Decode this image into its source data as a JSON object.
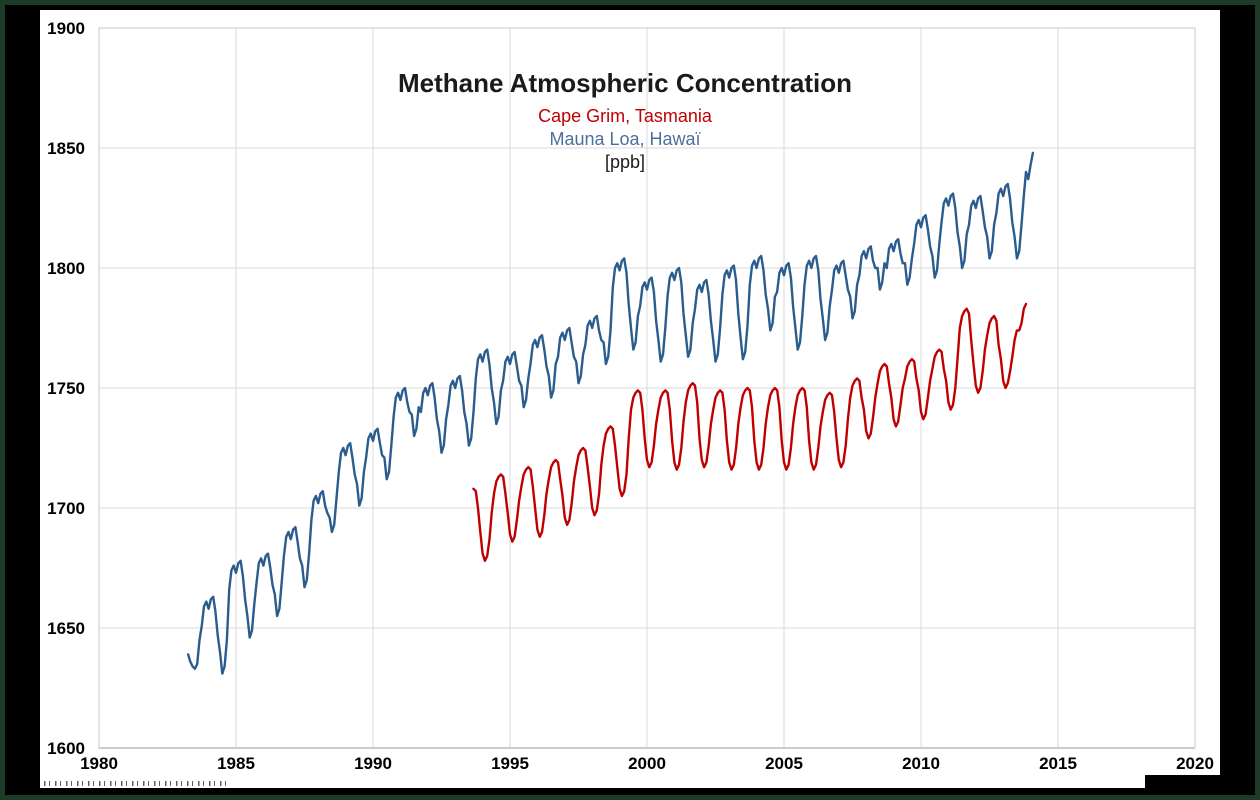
{
  "title": "Methane Atmospheric Concentration",
  "legend": {
    "cape_grim": "Cape Grim, Tasmania",
    "mauna_loa": "Mauna Loa, Hawaï",
    "unit": "[ppb]"
  },
  "colors": {
    "cape_grim_line": "#C00000",
    "cape_grim_label": "#C00000",
    "mauna_loa_line": "#2B5C8E",
    "mauna_loa_label": "#4D6F9D",
    "grid": "#D9D9D9",
    "plot_border": "#C9C9C9",
    "axis_line": "#9E9E9E",
    "frame_border": "#1C3B26",
    "outer_background": "#000000",
    "chart_background": "#FFFFFF"
  },
  "chart_data": {
    "type": "line",
    "title": "Methane Atmospheric Concentration",
    "subtitle1": "Cape Grim, Tasmania",
    "subtitle2": "Mauna Loa, Hawaï",
    "unit": "ppb",
    "grid": true,
    "legend_position": "top-center-as-subtitles",
    "x_axis": {
      "min": 1980,
      "max": 2020,
      "tick_step": 5,
      "ticks": [
        1980,
        1985,
        1990,
        1995,
        2000,
        2005,
        2010,
        2015,
        2020
      ]
    },
    "y_axis": {
      "min": 1600,
      "max": 1900,
      "tick_step": 50,
      "ticks": [
        1600,
        1650,
        1700,
        1750,
        1800,
        1850,
        1900
      ]
    },
    "series": [
      {
        "name": "Mauna Loa, Hawaï",
        "color": "#2B5C8E",
        "start_year": 1983.25,
        "points_per_year": 12,
        "values": [
          1639,
          1636,
          1634,
          1633,
          1635,
          1645,
          1651,
          1659,
          1661,
          1658,
          1662,
          1663,
          1657,
          1647,
          1640,
          1631,
          1634,
          1645,
          1666,
          1674,
          1676,
          1673,
          1677,
          1678,
          1672,
          1662,
          1655,
          1646,
          1649,
          1660,
          1669,
          1677,
          1679,
          1676,
          1680,
          1681,
          1675,
          1668,
          1664,
          1655,
          1658,
          1669,
          1680,
          1688,
          1690,
          1687,
          1691,
          1692,
          1686,
          1679,
          1676,
          1667,
          1670,
          1681,
          1695,
          1703,
          1705,
          1702,
          1706,
          1707,
          1701,
          1698,
          1696,
          1690,
          1693,
          1704,
          1715,
          1723,
          1725,
          1722,
          1726,
          1727,
          1721,
          1714,
          1710,
          1701,
          1704,
          1715,
          1721,
          1729,
          1731,
          1728,
          1732,
          1733,
          1727,
          1722,
          1721,
          1712,
          1715,
          1726,
          1738,
          1746,
          1748,
          1745,
          1749,
          1750,
          1744,
          1740,
          1739,
          1730,
          1733,
          1742,
          1740,
          1748,
          1750,
          1747,
          1751,
          1752,
          1746,
          1737,
          1732,
          1723,
          1726,
          1737,
          1743,
          1751,
          1753,
          1750,
          1754,
          1755,
          1749,
          1740,
          1735,
          1726,
          1729,
          1740,
          1754,
          1762,
          1764,
          1761,
          1765,
          1766,
          1760,
          1750,
          1744,
          1735,
          1738,
          1749,
          1753,
          1761,
          1763,
          1760,
          1764,
          1765,
          1759,
          1753,
          1751,
          1742,
          1745,
          1754,
          1760,
          1768,
          1770,
          1767,
          1771,
          1772,
          1766,
          1759,
          1755,
          1746,
          1749,
          1760,
          1763,
          1771,
          1773,
          1770,
          1774,
          1775,
          1769,
          1763,
          1761,
          1752,
          1755,
          1764,
          1768,
          1776,
          1778,
          1775,
          1779,
          1780,
          1774,
          1770,
          1769,
          1760,
          1763,
          1774,
          1792,
          1800,
          1802,
          1799,
          1803,
          1804,
          1798,
          1785,
          1775,
          1766,
          1769,
          1780,
          1784,
          1792,
          1794,
          1791,
          1795,
          1796,
          1790,
          1778,
          1770,
          1761,
          1764,
          1775,
          1788,
          1796,
          1798,
          1795,
          1799,
          1800,
          1794,
          1781,
          1772,
          1763,
          1766,
          1777,
          1783,
          1791,
          1793,
          1790,
          1794,
          1795,
          1789,
          1778,
          1770,
          1761,
          1764,
          1775,
          1789,
          1797,
          1799,
          1796,
          1800,
          1801,
          1795,
          1781,
          1771,
          1762,
          1765,
          1776,
          1793,
          1801,
          1803,
          1800,
          1804,
          1805,
          1799,
          1789,
          1783,
          1774,
          1777,
          1788,
          1790,
          1798,
          1800,
          1797,
          1801,
          1802,
          1796,
          1784,
          1775,
          1766,
          1769,
          1780,
          1793,
          1801,
          1803,
          1800,
          1804,
          1805,
          1799,
          1787,
          1779,
          1770,
          1773,
          1784,
          1791,
          1799,
          1801,
          1798,
          1802,
          1803,
          1797,
          1791,
          1788,
          1779,
          1782,
          1793,
          1797,
          1805,
          1807,
          1804,
          1808,
          1809,
          1803,
          1800,
          1800,
          1791,
          1794,
          1802,
          1800,
          1808,
          1810,
          1807,
          1811,
          1812,
          1806,
          1802,
          1802,
          1793,
          1796,
          1804,
          1810,
          1818,
          1820,
          1817,
          1821,
          1822,
          1816,
          1809,
          1805,
          1796,
          1799,
          1810,
          1819,
          1827,
          1829,
          1826,
          1830,
          1831,
          1825,
          1815,
          1809,
          1800,
          1803,
          1814,
          1818,
          1826,
          1828,
          1825,
          1829,
          1830,
          1824,
          1817,
          1813,
          1804,
          1807,
          1818,
          1823,
          1831,
          1833,
          1830,
          1834,
          1835,
          1829,
          1819,
          1813,
          1804,
          1807,
          1818,
          1830,
          1840,
          1837,
          1843,
          1848
        ]
      },
      {
        "name": "Cape Grim, Tasmania",
        "color": "#C00000",
        "start_year": 1993.6667,
        "points_per_year": 12,
        "values": [
          1708,
          1707,
          1700,
          1690,
          1681,
          1678,
          1680,
          1687,
          1698,
          1706,
          1711,
          1713,
          1714,
          1713,
          1706,
          1698,
          1689,
          1686,
          1688,
          1695,
          1703,
          1709,
          1714,
          1716,
          1717,
          1716,
          1709,
          1700,
          1691,
          1688,
          1690,
          1697,
          1706,
          1712,
          1717,
          1719,
          1720,
          1719,
          1712,
          1705,
          1696,
          1693,
          1695,
          1702,
          1711,
          1717,
          1722,
          1724,
          1725,
          1724,
          1717,
          1709,
          1700,
          1697,
          1699,
          1706,
          1718,
          1726,
          1731,
          1733,
          1734,
          1733,
          1726,
          1717,
          1708,
          1705,
          1707,
          1714,
          1729,
          1741,
          1746,
          1748,
          1749,
          1748,
          1741,
          1729,
          1720,
          1717,
          1719,
          1726,
          1735,
          1741,
          1746,
          1748,
          1749,
          1748,
          1741,
          1728,
          1719,
          1716,
          1718,
          1725,
          1736,
          1744,
          1749,
          1751,
          1752,
          1751,
          1744,
          1729,
          1720,
          1717,
          1719,
          1726,
          1735,
          1741,
          1746,
          1748,
          1749,
          1748,
          1741,
          1728,
          1719,
          1716,
          1718,
          1725,
          1735,
          1742,
          1747,
          1749,
          1750,
          1749,
          1742,
          1728,
          1719,
          1716,
          1718,
          1725,
          1735,
          1742,
          1747,
          1749,
          1750,
          1749,
          1742,
          1728,
          1719,
          1716,
          1718,
          1725,
          1735,
          1742,
          1747,
          1749,
          1750,
          1749,
          1742,
          1728,
          1719,
          1716,
          1718,
          1725,
          1734,
          1740,
          1745,
          1747,
          1748,
          1747,
          1740,
          1729,
          1720,
          1717,
          1719,
          1726,
          1737,
          1746,
          1751,
          1753,
          1754,
          1753,
          1746,
          1741,
          1732,
          1729,
          1731,
          1738,
          1746,
          1752,
          1757,
          1759,
          1760,
          1759,
          1752,
          1746,
          1737,
          1734,
          1736,
          1743,
          1750,
          1754,
          1759,
          1761,
          1762,
          1761,
          1754,
          1749,
          1740,
          1737,
          1739,
          1746,
          1753,
          1758,
          1763,
          1765,
          1766,
          1765,
          1758,
          1753,
          1744,
          1741,
          1743,
          1750,
          1762,
          1775,
          1780,
          1782,
          1783,
          1781,
          1770,
          1760,
          1751,
          1748,
          1750,
          1757,
          1766,
          1772,
          1777,
          1779,
          1780,
          1778,
          1768,
          1762,
          1753,
          1750,
          1752,
          1757,
          1763,
          1770,
          1774,
          1774,
          1777,
          1783,
          1785
        ]
      }
    ]
  }
}
